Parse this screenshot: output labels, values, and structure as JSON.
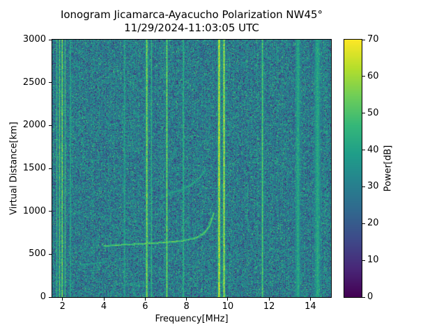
{
  "chart_data": {
    "type": "heatmap",
    "title": "Ionogram Jicamarca-Ayacucho Polarization NW45°",
    "subtitle": "11/29/2024-11:03:05 UTC",
    "xlabel": "Frequency[MHz]",
    "ylabel": "Virtual Distance[km]",
    "x_range": [
      1.5,
      15.0
    ],
    "y_range": [
      0,
      3000
    ],
    "x_ticks": [
      2,
      4,
      6,
      8,
      10,
      12,
      14
    ],
    "y_ticks": [
      0,
      500,
      1000,
      1500,
      2000,
      2500,
      3000
    ],
    "grid": false,
    "colorbar": {
      "label": "Power[dB]",
      "range": [
        0,
        70
      ],
      "ticks": [
        0,
        10,
        20,
        30,
        40,
        50,
        60,
        70
      ],
      "colormap": "viridis",
      "position": "right"
    },
    "background_power_db": [
      18,
      42
    ],
    "rfi_lines": [
      {
        "freq": 1.72,
        "width": 0.03,
        "power": 50
      },
      {
        "freq": 1.85,
        "width": 0.03,
        "power": 57
      },
      {
        "freq": 1.98,
        "width": 0.035,
        "power": 62
      },
      {
        "freq": 2.12,
        "width": 0.03,
        "power": 52
      },
      {
        "freq": 2.38,
        "width": 0.03,
        "power": 47
      },
      {
        "freq": 5.0,
        "width": 0.04,
        "power": 44
      },
      {
        "freq": 6.08,
        "width": 0.05,
        "power": 62
      },
      {
        "freq": 6.3,
        "width": 0.035,
        "power": 48
      },
      {
        "freq": 7.05,
        "width": 0.045,
        "power": 60
      },
      {
        "freq": 7.85,
        "width": 0.035,
        "power": 50
      },
      {
        "freq": 9.58,
        "width": 0.06,
        "power": 69
      },
      {
        "freq": 9.82,
        "width": 0.05,
        "power": 67
      },
      {
        "freq": 11.68,
        "width": 0.045,
        "power": 56
      },
      {
        "freq": 13.4,
        "width": 0.12,
        "power": 44
      },
      {
        "freq": 14.35,
        "width": 0.15,
        "power": 44
      }
    ],
    "echo_traces": [
      {
        "name": "f-layer-first-hop",
        "points": [
          [
            4.0,
            600
          ],
          [
            5.0,
            615
          ],
          [
            6.0,
            628
          ],
          [
            7.0,
            642
          ],
          [
            7.8,
            660
          ],
          [
            8.4,
            690
          ],
          [
            8.8,
            740
          ],
          [
            9.1,
            830
          ],
          [
            9.3,
            980
          ]
        ],
        "power": 58
      },
      {
        "name": "second-hop",
        "points": [
          [
            7.1,
            1210
          ],
          [
            7.7,
            1250
          ],
          [
            8.2,
            1310
          ],
          [
            8.6,
            1390
          ],
          [
            8.9,
            1480
          ]
        ],
        "power": 46
      },
      {
        "name": "low-echo",
        "points": [
          [
            2.9,
            380
          ],
          [
            3.6,
            400
          ],
          [
            4.1,
            415
          ]
        ],
        "power": 43
      }
    ]
  }
}
